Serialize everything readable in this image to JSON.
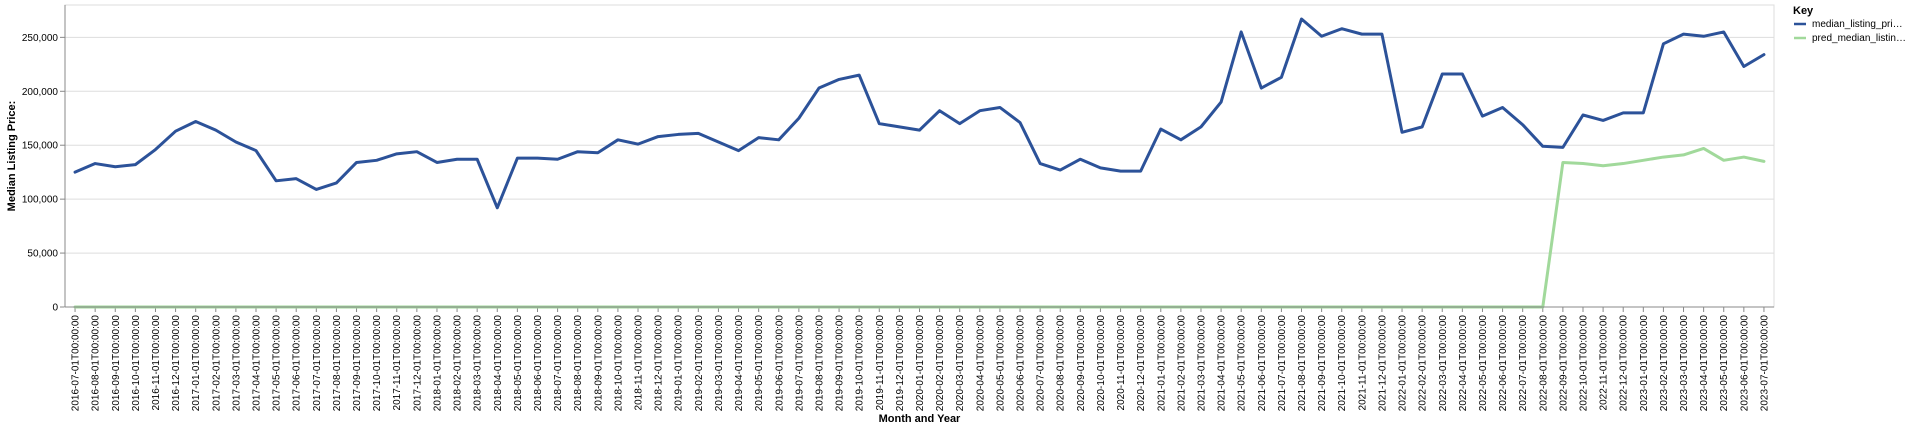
{
  "chart_data": {
    "type": "line",
    "xlabel": "Month and Year",
    "ylabel": "Median Listing Price:",
    "ylim": [
      0,
      280000
    ],
    "yticks": [
      0,
      50000,
      100000,
      150000,
      200000,
      250000
    ],
    "ytick_labels": [
      "0",
      "50,000",
      "100,000",
      "150,000",
      "200,000",
      "250,000"
    ],
    "grid": true,
    "legend": {
      "title": "Key",
      "position": "top-right"
    },
    "x": [
      "2016-07-01T00:00:00",
      "2016-08-01T00:00:00",
      "2016-09-01T00:00:00",
      "2016-10-01T00:00:00",
      "2016-11-01T00:00:00",
      "2016-12-01T00:00:00",
      "2017-01-01T00:00:00",
      "2017-02-01T00:00:00",
      "2017-03-01T00:00:00",
      "2017-04-01T00:00:00",
      "2017-05-01T00:00:00",
      "2017-06-01T00:00:00",
      "2017-07-01T00:00:00",
      "2017-08-01T00:00:00",
      "2017-09-01T00:00:00",
      "2017-10-01T00:00:00",
      "2017-11-01T00:00:00",
      "2017-12-01T00:00:00",
      "2018-01-01T00:00:00",
      "2018-02-01T00:00:00",
      "2018-03-01T00:00:00",
      "2018-04-01T00:00:00",
      "2018-05-01T00:00:00",
      "2018-06-01T00:00:00",
      "2018-07-01T00:00:00",
      "2018-08-01T00:00:00",
      "2018-09-01T00:00:00",
      "2018-10-01T00:00:00",
      "2018-11-01T00:00:00",
      "2018-12-01T00:00:00",
      "2019-01-01T00:00:00",
      "2019-02-01T00:00:00",
      "2019-03-01T00:00:00",
      "2019-04-01T00:00:00",
      "2019-05-01T00:00:00",
      "2019-06-01T00:00:00",
      "2019-07-01T00:00:00",
      "2019-08-01T00:00:00",
      "2019-09-01T00:00:00",
      "2019-10-01T00:00:00",
      "2019-11-01T00:00:00",
      "2019-12-01T00:00:00",
      "2020-01-01T00:00:00",
      "2020-02-01T00:00:00",
      "2020-03-01T00:00:00",
      "2020-04-01T00:00:00",
      "2020-05-01T00:00:00",
      "2020-06-01T00:00:00",
      "2020-07-01T00:00:00",
      "2020-08-01T00:00:00",
      "2020-09-01T00:00:00",
      "2020-10-01T00:00:00",
      "2020-11-01T00:00:00",
      "2020-12-01T00:00:00",
      "2021-01-01T00:00:00",
      "2021-02-01T00:00:00",
      "2021-03-01T00:00:00",
      "2021-04-01T00:00:00",
      "2021-05-01T00:00:00",
      "2021-06-01T00:00:00",
      "2021-07-01T00:00:00",
      "2021-08-01T00:00:00",
      "2021-09-01T00:00:00",
      "2021-10-01T00:00:00",
      "2021-11-01T00:00:00",
      "2021-12-01T00:00:00",
      "2022-01-01T00:00:00",
      "2022-02-01T00:00:00",
      "2022-03-01T00:00:00",
      "2022-04-01T00:00:00",
      "2022-05-01T00:00:00",
      "2022-06-01T00:00:00",
      "2022-07-01T00:00:00",
      "2022-08-01T00:00:00",
      "2022-09-01T00:00:00",
      "2022-10-01T00:00:00",
      "2022-11-01T00:00:00",
      "2022-12-01T00:00:00",
      "2023-01-01T00:00:00",
      "2023-02-01T00:00:00",
      "2023-03-01T00:00:00",
      "2023-04-01T00:00:00",
      "2023-05-01T00:00:00",
      "2023-06-01T00:00:00",
      "2023-07-01T00:00:00"
    ],
    "series": [
      {
        "name": "median_listing_pri…",
        "color": "#2c5299",
        "values": [
          125000,
          133000,
          130000,
          132000,
          146000,
          163000,
          172000,
          164000,
          153000,
          145000,
          117000,
          119000,
          109000,
          115000,
          134000,
          136000,
          142000,
          144000,
          134000,
          137000,
          137000,
          92000,
          138000,
          138000,
          137000,
          144000,
          143000,
          155000,
          151000,
          158000,
          160000,
          161000,
          153000,
          145000,
          157000,
          155000,
          175000,
          203000,
          211000,
          215000,
          170000,
          167000,
          164000,
          182000,
          170000,
          182000,
          185000,
          171000,
          133000,
          127000,
          137000,
          129000,
          126000,
          126000,
          165000,
          155000,
          167000,
          190000,
          255000,
          203000,
          213000,
          267000,
          251000,
          258000,
          253000,
          253000,
          162000,
          167000,
          216000,
          216000,
          177000,
          185000,
          169000,
          149000,
          148000,
          178000,
          173000,
          180000,
          180000,
          244000,
          253000,
          251000,
          255000,
          223000,
          234000
        ]
      },
      {
        "name": "pred_median_listin…",
        "color": "#a1d99b",
        "values": [
          0,
          0,
          0,
          0,
          0,
          0,
          0,
          0,
          0,
          0,
          0,
          0,
          0,
          0,
          0,
          0,
          0,
          0,
          0,
          0,
          0,
          0,
          0,
          0,
          0,
          0,
          0,
          0,
          0,
          0,
          0,
          0,
          0,
          0,
          0,
          0,
          0,
          0,
          0,
          0,
          0,
          0,
          0,
          0,
          0,
          0,
          0,
          0,
          0,
          0,
          0,
          0,
          0,
          0,
          0,
          0,
          0,
          0,
          0,
          0,
          0,
          0,
          0,
          0,
          0,
          0,
          0,
          0,
          0,
          0,
          0,
          0,
          0,
          0,
          134000,
          133000,
          131000,
          133000,
          136000,
          139000,
          141000,
          147000,
          136000,
          139000,
          135000
        ]
      }
    ]
  }
}
